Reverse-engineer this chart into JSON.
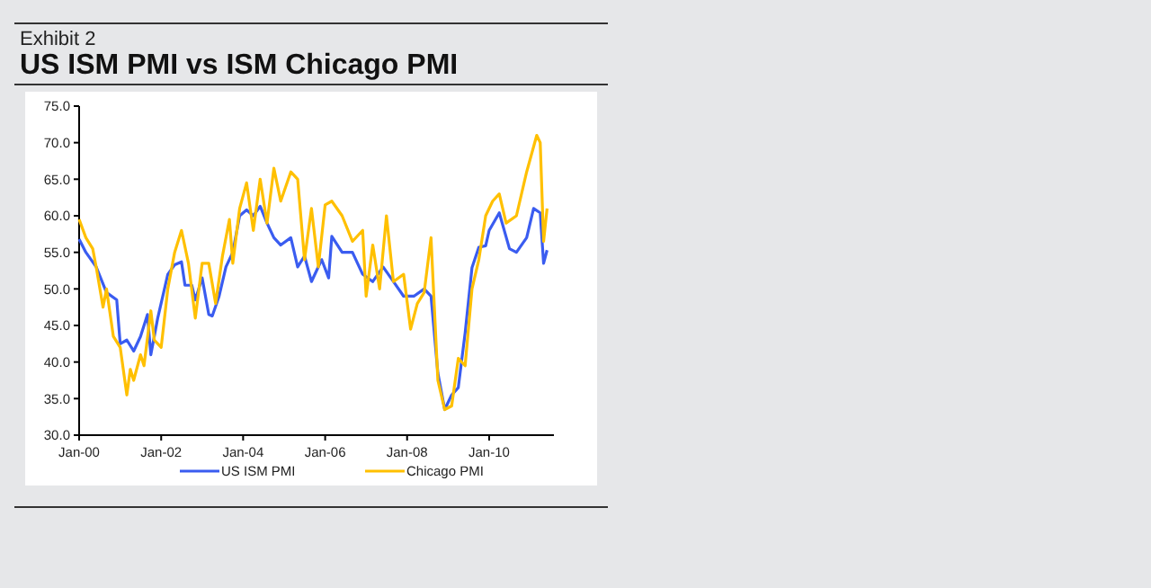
{
  "chart_data": {
    "type": "line",
    "subtitle": "Exhibit 2",
    "title": "US ISM PMI vs ISM Chicago PMI",
    "xlim": [
      "2000-01",
      "2011-08"
    ],
    "xticks": [
      {
        "value": "2000-01",
        "label": "Jan-00"
      },
      {
        "value": "2002-01",
        "label": "Jan-02"
      },
      {
        "value": "2004-01",
        "label": "Jan-04"
      },
      {
        "value": "2006-01",
        "label": "Jan-06"
      },
      {
        "value": "2008-01",
        "label": "Jan-08"
      },
      {
        "value": "2010-01",
        "label": "Jan-10"
      }
    ],
    "ylim": [
      30,
      75
    ],
    "yticks": [
      {
        "value": 30,
        "label": "30.0"
      },
      {
        "value": 35,
        "label": "35.0"
      },
      {
        "value": 40,
        "label": "40.0"
      },
      {
        "value": 45,
        "label": "45.0"
      },
      {
        "value": 50,
        "label": "50.0"
      },
      {
        "value": 55,
        "label": "55.0"
      },
      {
        "value": 60,
        "label": "60.0"
      },
      {
        "value": 65,
        "label": "65.0"
      },
      {
        "value": 70,
        "label": "70.0"
      },
      {
        "value": 75,
        "label": "75.0"
      }
    ],
    "grid": false,
    "legend": "bottom",
    "marker": "none",
    "line_style": "solid",
    "series": [
      {
        "name": "US ISM PMI",
        "color": "#3a5cf0",
        "x": [
          "2000-01",
          "2000-03",
          "2000-06",
          "2000-09",
          "2000-12",
          "2001-01",
          "2001-03",
          "2001-05",
          "2001-07",
          "2001-09",
          "2001-10",
          "2001-12",
          "2002-03",
          "2002-05",
          "2002-07",
          "2002-08",
          "2002-10",
          "2002-11",
          "2003-01",
          "2003-03",
          "2003-04",
          "2003-06",
          "2003-08",
          "2003-10",
          "2003-12",
          "2004-02",
          "2004-04",
          "2004-06",
          "2004-08",
          "2004-10",
          "2004-12",
          "2005-03",
          "2005-05",
          "2005-07",
          "2005-09",
          "2005-12",
          "2006-02",
          "2006-03",
          "2006-06",
          "2006-09",
          "2006-12",
          "2007-03",
          "2007-06",
          "2007-09",
          "2007-12",
          "2008-03",
          "2008-06",
          "2008-08",
          "2008-10",
          "2008-12",
          "2009-02",
          "2009-04",
          "2009-06",
          "2009-08",
          "2009-10",
          "2009-12",
          "2010-01",
          "2010-04",
          "2010-07",
          "2010-09",
          "2010-12",
          "2011-02",
          "2011-04",
          "2011-05",
          "2011-06"
        ],
        "values": [
          56.8,
          55,
          53,
          49.5,
          48.5,
          42.5,
          43,
          41.5,
          43.5,
          46.5,
          41,
          46,
          52,
          53.3,
          53.7,
          50.5,
          50.5,
          48.5,
          51.5,
          46.5,
          46.3,
          49,
          53,
          55,
          60,
          60.8,
          60,
          61.3,
          59,
          57,
          56,
          57,
          53,
          54.5,
          51,
          54,
          51.5,
          57.2,
          55,
          55,
          52,
          51,
          53,
          51,
          49,
          49,
          50,
          49,
          38.5,
          33.5,
          35.5,
          36.5,
          44,
          52.9,
          55.7,
          55.9,
          58,
          60.4,
          55.5,
          55,
          57,
          61,
          60.4,
          53.5,
          55.3
        ]
      },
      {
        "name": "Chicago PMI",
        "color": "#ffc000",
        "x": [
          "2000-01",
          "2000-03",
          "2000-05",
          "2000-06",
          "2000-08",
          "2000-09",
          "2000-11",
          "2001-01",
          "2001-03",
          "2001-04",
          "2001-05",
          "2001-07",
          "2001-08",
          "2001-10",
          "2001-11",
          "2002-01",
          "2002-03",
          "2002-05",
          "2002-07",
          "2002-09",
          "2002-11",
          "2003-01",
          "2003-03",
          "2003-05",
          "2003-07",
          "2003-09",
          "2003-10",
          "2003-12",
          "2004-02",
          "2004-04",
          "2004-06",
          "2004-08",
          "2004-10",
          "2004-12",
          "2005-03",
          "2005-05",
          "2005-07",
          "2005-09",
          "2005-11",
          "2006-01",
          "2006-03",
          "2006-06",
          "2006-09",
          "2006-12",
          "2007-01",
          "2007-03",
          "2007-05",
          "2007-07",
          "2007-09",
          "2007-12",
          "2008-02",
          "2008-04",
          "2008-06",
          "2008-08",
          "2008-10",
          "2008-12",
          "2009-02",
          "2009-04",
          "2009-06",
          "2009-08",
          "2009-10",
          "2009-12",
          "2010-02",
          "2010-04",
          "2010-06",
          "2010-09",
          "2010-12",
          "2011-03",
          "2011-04",
          "2011-05",
          "2011-06"
        ],
        "values": [
          59.5,
          57,
          55.5,
          53,
          47.5,
          50,
          43.5,
          42,
          35.5,
          39,
          37.5,
          41,
          39.5,
          47,
          43,
          42,
          50,
          55,
          58,
          53.5,
          46,
          53.5,
          53.5,
          48,
          54.5,
          59.5,
          53.5,
          61,
          64.5,
          58,
          65,
          59,
          66.5,
          62,
          66,
          65,
          54,
          61,
          53,
          61.5,
          62,
          60,
          56.5,
          58,
          49,
          56,
          50,
          60,
          51,
          52,
          44.5,
          48,
          49.5,
          57,
          37.5,
          33.5,
          34,
          40.5,
          39.5,
          50,
          54,
          60,
          62,
          63,
          59,
          60,
          66,
          71,
          70,
          56.5,
          61
        ]
      }
    ]
  }
}
